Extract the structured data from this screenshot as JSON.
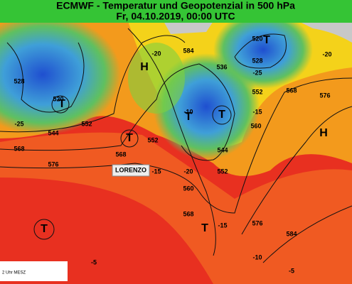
{
  "header": {
    "title": "ECMWF - Temperatur und Geopotenzial in 500 hPa",
    "subtitle": "Fr, 04.10.2019, 00:00 UTC"
  },
  "map": {
    "contour_labels": [
      "528",
      "520",
      "544",
      "552",
      "568",
      "576",
      "584",
      "536",
      "528",
      "520",
      "552",
      "568",
      "576",
      "560",
      "544",
      "552",
      "560",
      "568",
      "576",
      "584",
      "552",
      "568"
    ],
    "temperature_labels": [
      "-20",
      "-20",
      "-25",
      "-25",
      "-10",
      "-15",
      "-20",
      "-15",
      "-15",
      "-10",
      "-5",
      "-5"
    ],
    "systems": [
      "H",
      "T",
      "T",
      "T",
      "T",
      "T",
      "H",
      "T",
      "T"
    ],
    "storm": "LORENZO",
    "footer": "2 Uhr MESZ"
  }
}
